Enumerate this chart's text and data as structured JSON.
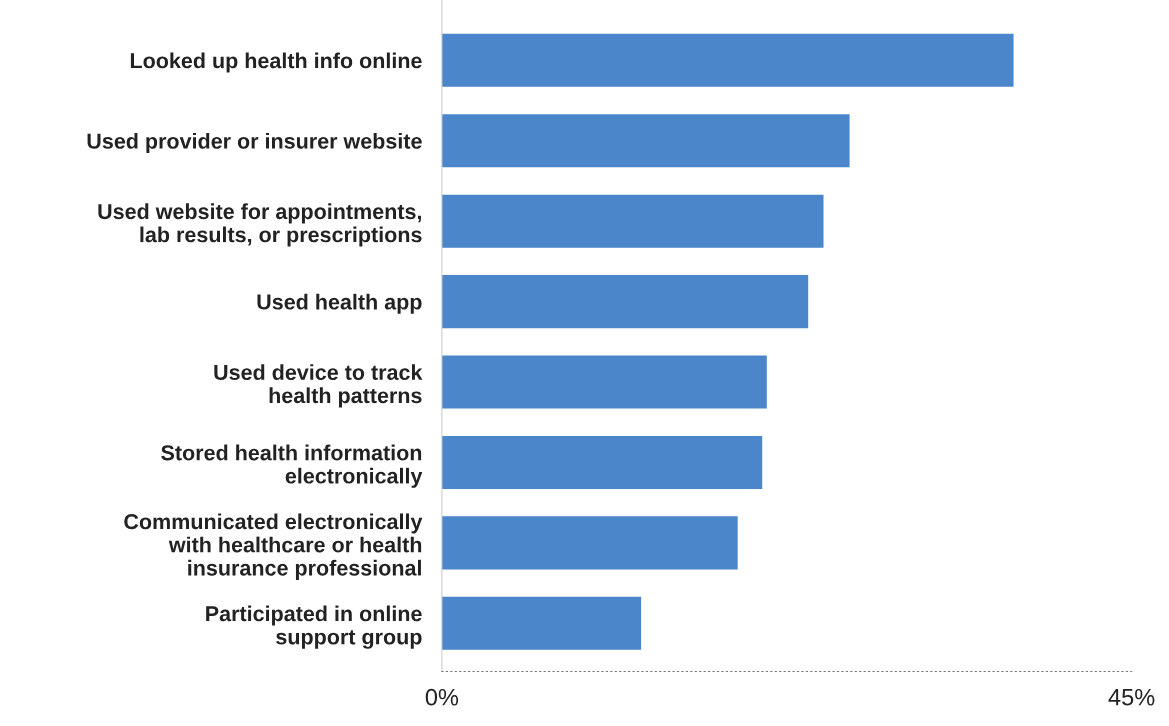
{
  "chart_data": {
    "type": "bar",
    "orientation": "horizontal",
    "categories": [
      "Looked up health info online",
      "Used provider or insurer website",
      "Used website for appointments,\nlab results, or prescriptions",
      "Used health app",
      "Used device to track\nhealth patterns",
      "Stored health information\nelectronically",
      "Communicated electronically\nwith healthcare or health\ninsurance professional",
      "Participated in online\nsupport group"
    ],
    "values": [
      37.3,
      26.6,
      24.9,
      23.9,
      21.2,
      20.9,
      19.3,
      13.0
    ],
    "color": "#4a86c9",
    "xlim": [
      0,
      45
    ],
    "xticks": [
      {
        "value": 0,
        "label": "0%"
      },
      {
        "value": 45,
        "label": "45%"
      }
    ],
    "grid": false
  }
}
